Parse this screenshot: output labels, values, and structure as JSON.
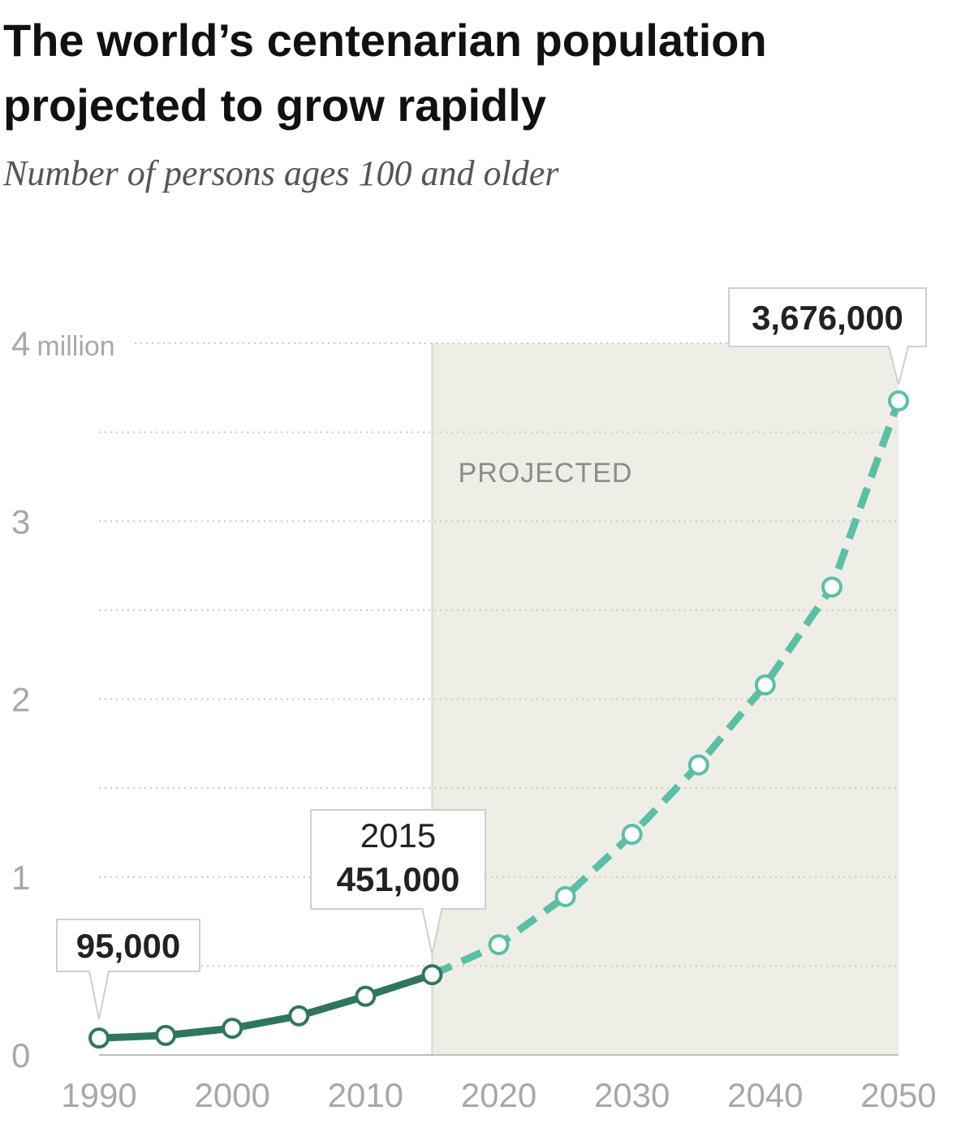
{
  "title": "The world’s centenarian population projected to grow rapidly",
  "subtitle": "Number of persons ages 100 and older",
  "colors": {
    "estimated": "#2f7660",
    "projected": "#5bbfa8",
    "projected_band": "#efeee6",
    "gridline": "#c9c9c9",
    "tick_text": "#a8a8a8"
  },
  "chart_data": {
    "type": "line",
    "title": "The world’s centenarian population projected to grow rapidly",
    "subtitle": "Number of persons ages 100 and older",
    "x": [
      1990,
      1995,
      2000,
      2005,
      2010,
      2015,
      2020,
      2025,
      2030,
      2035,
      2040,
      2045,
      2050
    ],
    "series": [
      {
        "segment": "estimated",
        "style": "solid",
        "x": [
          1990,
          1995,
          2000,
          2005,
          2010,
          2015
        ],
        "values": [
          95000,
          110000,
          150000,
          220000,
          330000,
          451000
        ]
      },
      {
        "segment": "projected",
        "style": "dashed",
        "x": [
          2015,
          2020,
          2025,
          2030,
          2035,
          2040,
          2045,
          2050
        ],
        "values": [
          451000,
          620000,
          890000,
          1240000,
          1630000,
          2080000,
          2630000,
          3676000
        ]
      }
    ],
    "xlim": [
      1990,
      2050
    ],
    "ylim": [
      0,
      4000000
    ],
    "xticks": [
      "1990",
      "2000",
      "2010",
      "2020",
      "2030",
      "2040",
      "2050"
    ],
    "yticks": [
      {
        "value": 0,
        "label": "0"
      },
      {
        "value": 1000000,
        "label": "1"
      },
      {
        "value": 2000000,
        "label": "2"
      },
      {
        "value": 3000000,
        "label": "3"
      },
      {
        "value": 4000000,
        "label": "4",
        "unit": "million"
      }
    ],
    "gridlines": "dotted horizontal every 500,000",
    "projected_region": {
      "from": 2015,
      "to": 2050,
      "label": "PROJECTED"
    },
    "annotations": [
      {
        "x": 1990,
        "lines": [
          "95,000"
        ]
      },
      {
        "x": 2015,
        "lines": [
          "2015",
          "451,000"
        ]
      },
      {
        "x": 2050,
        "lines": [
          "3,676,000"
        ]
      }
    ]
  }
}
